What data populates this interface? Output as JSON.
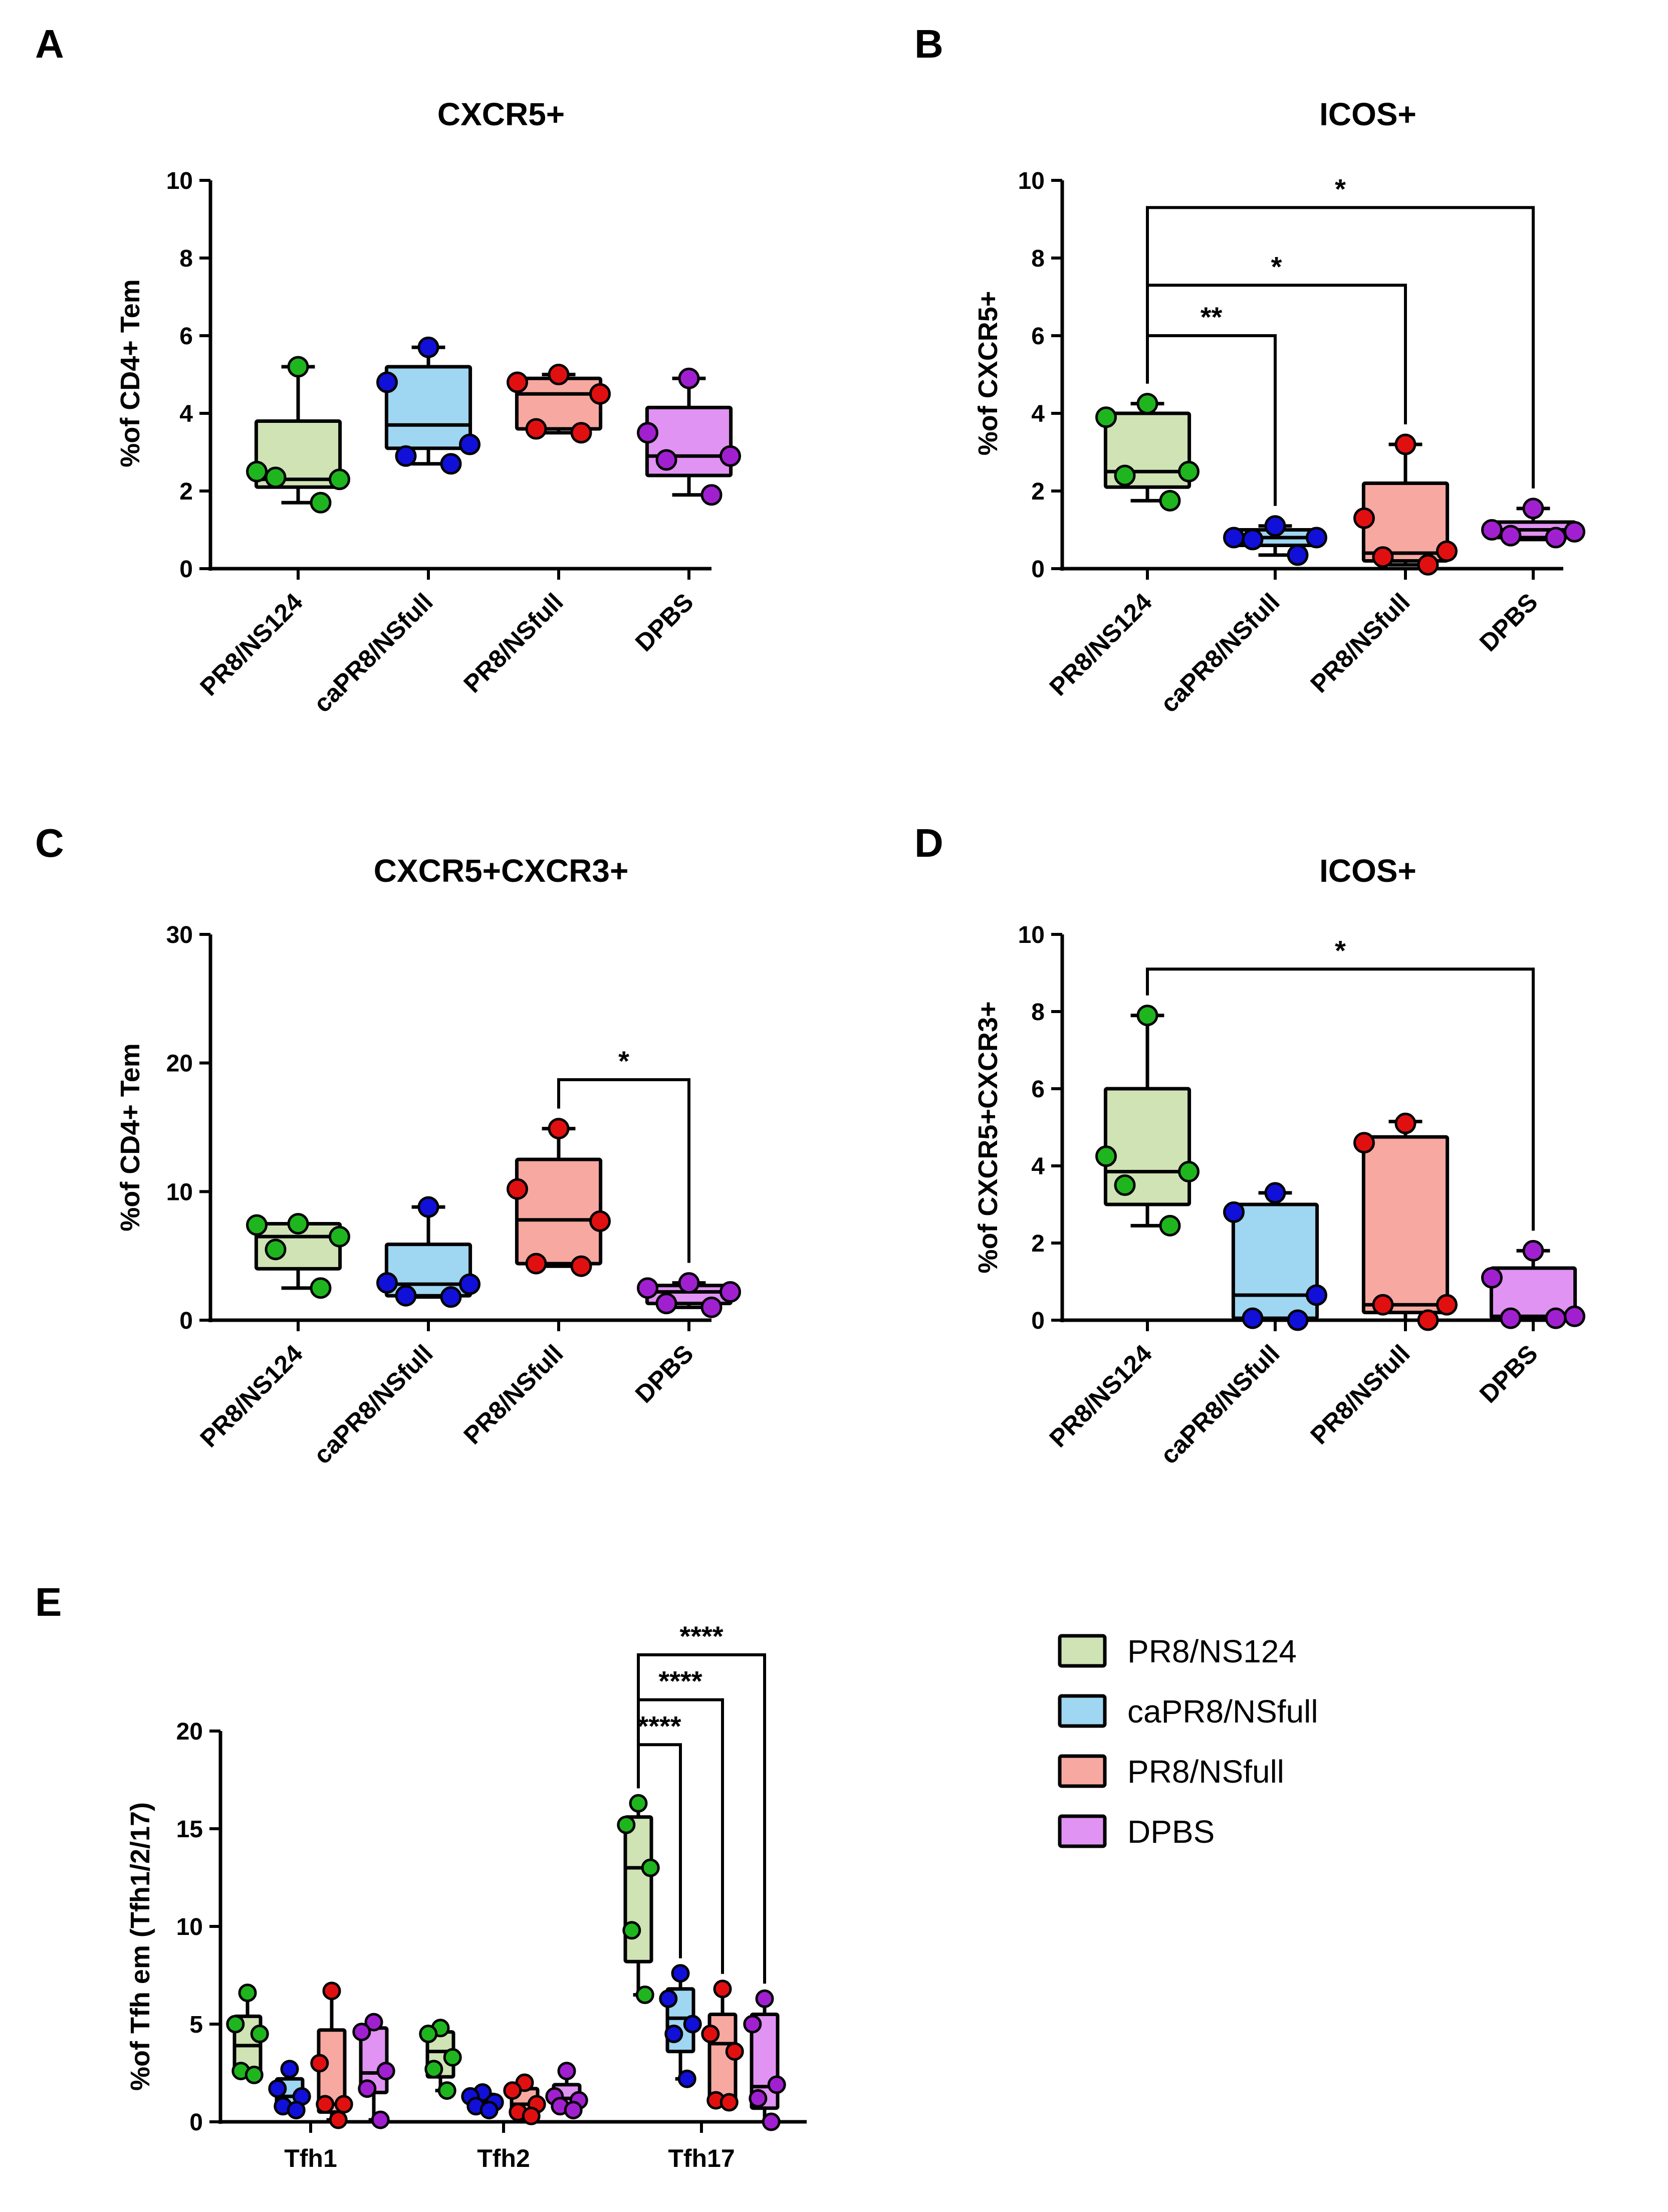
{
  "panels": [
    {
      "label": "A",
      "title": "CXCR5+",
      "ylabel": "%of CD4+ Tem",
      "ylim": [
        0,
        10
      ],
      "yticks": [
        0,
        2,
        4,
        6,
        8,
        10
      ]
    },
    {
      "label": "B",
      "title": "ICOS+",
      "ylabel": "%of CXCR5+",
      "ylim": [
        0,
        10
      ],
      "yticks": [
        0,
        2,
        4,
        6,
        8,
        10
      ]
    },
    {
      "label": "C",
      "title": "CXCR5+CXCR3+",
      "ylabel": "%of CD4+ Tem",
      "ylim": [
        0,
        30
      ],
      "yticks": [
        0,
        10,
        20,
        30
      ]
    },
    {
      "label": "D",
      "title": "ICOS+",
      "ylabel": "%of CXCR5+CXCR3+",
      "ylim": [
        0,
        10
      ],
      "yticks": [
        0,
        2,
        4,
        6,
        8,
        10
      ]
    },
    {
      "label": "E",
      "title": "",
      "ylabel": "%of Tfh em (Tfh1/2/17)",
      "ylim": [
        0,
        20
      ],
      "yticks": [
        0,
        5,
        10,
        15,
        20
      ]
    }
  ],
  "legend": {
    "items": [
      "PR8/NS124",
      "caPR8/NSfull",
      "PR8/NSfull",
      "DPBS"
    ]
  },
  "colors": {
    "fills": [
      "#cfe3b5",
      "#9fd6f1",
      "#f7a8a0",
      "#e093f2"
    ],
    "dots": [
      "#1fb51f",
      "#1010d8",
      "#e11010",
      "#a020d0"
    ]
  },
  "chart_data": [
    {
      "type": "box",
      "panel": "A",
      "title": "CXCR5+",
      "ylabel": "%of CD4+ Tem",
      "ylim": [
        0,
        10
      ],
      "categories": [
        "PR8/NS124",
        "caPR8/NSfull",
        "PR8/NSfull",
        "DPBS"
      ],
      "boxes": [
        {
          "min": 1.7,
          "q1": 2.1,
          "median": 2.3,
          "q3": 3.8,
          "max": 5.2
        },
        {
          "min": 2.7,
          "q1": 3.1,
          "median": 3.7,
          "q3": 5.2,
          "max": 5.7
        },
        {
          "min": 3.5,
          "q1": 3.6,
          "median": 4.5,
          "q3": 4.9,
          "max": 5.0
        },
        {
          "min": 1.9,
          "q1": 2.4,
          "median": 2.9,
          "q3": 4.15,
          "max": 4.9
        }
      ],
      "points": [
        [
          5.2,
          2.5,
          2.3,
          2.35,
          1.7
        ],
        [
          5.7,
          4.8,
          3.2,
          2.9,
          2.7
        ],
        [
          5.0,
          4.8,
          4.5,
          3.6,
          3.5
        ],
        [
          4.9,
          3.5,
          2.9,
          2.8,
          1.9
        ]
      ],
      "significance": []
    },
    {
      "type": "box",
      "panel": "B",
      "title": "ICOS+",
      "ylabel": "%of CXCR5+",
      "ylim": [
        0,
        10
      ],
      "categories": [
        "PR8/NS124",
        "caPR8/NSfull",
        "PR8/NSfull",
        "DPBS"
      ],
      "boxes": [
        {
          "min": 1.75,
          "q1": 2.1,
          "median": 2.5,
          "q3": 4.0,
          "max": 4.25
        },
        {
          "min": 0.35,
          "q1": 0.6,
          "median": 0.8,
          "q3": 1.0,
          "max": 1.1
        },
        {
          "min": 0.1,
          "q1": 0.2,
          "median": 0.4,
          "q3": 2.2,
          "max": 3.2
        },
        {
          "min": 0.75,
          "q1": 0.8,
          "median": 1.0,
          "q3": 1.2,
          "max": 1.55
        }
      ],
      "points": [
        [
          4.25,
          3.9,
          2.5,
          2.4,
          1.75
        ],
        [
          1.1,
          0.8,
          0.8,
          0.75,
          0.35
        ],
        [
          3.2,
          1.3,
          0.45,
          0.3,
          0.1
        ],
        [
          1.55,
          1.0,
          0.95,
          0.85,
          0.8
        ]
      ],
      "significance": [
        {
          "from": 0,
          "to": 1,
          "label": "**",
          "y": 6.0
        },
        {
          "from": 0,
          "to": 2,
          "label": "*",
          "y": 7.3
        },
        {
          "from": 0,
          "to": 3,
          "label": "*",
          "y": 9.3
        }
      ]
    },
    {
      "type": "box",
      "panel": "C",
      "title": "CXCR5+CXCR3+",
      "ylabel": "%of CD4+ Tem",
      "ylim": [
        0,
        30
      ],
      "categories": [
        "PR8/NS124",
        "caPR8/NSfull",
        "PR8/NSfull",
        "DPBS"
      ],
      "boxes": [
        {
          "min": 2.5,
          "q1": 4.0,
          "median": 6.5,
          "q3": 7.5,
          "max": 7.5
        },
        {
          "min": 1.8,
          "q1": 1.9,
          "median": 2.8,
          "q3": 5.9,
          "max": 8.8
        },
        {
          "min": 4.2,
          "q1": 4.4,
          "median": 7.8,
          "q3": 12.5,
          "max": 14.9
        },
        {
          "min": 1.0,
          "q1": 1.3,
          "median": 2.2,
          "q3": 2.7,
          "max": 2.9
        }
      ],
      "points": [
        [
          7.5,
          7.4,
          6.5,
          5.5,
          2.5
        ],
        [
          8.8,
          2.9,
          2.8,
          1.9,
          1.8
        ],
        [
          14.9,
          10.2,
          7.7,
          4.4,
          4.2
        ],
        [
          2.9,
          2.5,
          2.2,
          1.3,
          1.0
        ]
      ],
      "significance": [
        {
          "from": 2,
          "to": 3,
          "label": "*",
          "y": 18.7
        }
      ]
    },
    {
      "type": "box",
      "panel": "D",
      "title": "ICOS+",
      "ylabel": "%of CXCR5+CXCR3+",
      "ylim": [
        0,
        10
      ],
      "categories": [
        "PR8/NS124",
        "caPR8/NSfull",
        "PR8/NSfull",
        "DPBS"
      ],
      "boxes": [
        {
          "min": 2.45,
          "q1": 3.0,
          "median": 3.85,
          "q3": 6.0,
          "max": 7.9
        },
        {
          "min": 0.0,
          "q1": 0.05,
          "median": 0.65,
          "q3": 3.0,
          "max": 3.3
        },
        {
          "min": 0.0,
          "q1": 0.2,
          "median": 0.4,
          "q3": 4.75,
          "max": 5.15
        },
        {
          "min": 0.05,
          "q1": 0.05,
          "median": 0.1,
          "q3": 1.35,
          "max": 1.8
        }
      ],
      "points": [
        [
          7.9,
          4.25,
          3.85,
          3.5,
          2.45
        ],
        [
          3.3,
          2.8,
          0.65,
          0.05,
          0.0
        ],
        [
          5.1,
          4.6,
          0.4,
          0.4,
          0.0
        ],
        [
          1.8,
          1.1,
          0.1,
          0.05,
          0.05
        ]
      ],
      "significance": [
        {
          "from": 0,
          "to": 3,
          "label": "*",
          "y": 9.1
        }
      ]
    },
    {
      "type": "grouped-box",
      "panel": "E",
      "ylabel": "%of Tfh em (Tfh1/2/17)",
      "ylim": [
        0,
        20
      ],
      "categories": [
        "Tfh1",
        "Tfh2",
        "Tfh17"
      ],
      "series": [
        {
          "name": "PR8/NS124",
          "boxes": [
            {
              "min": 2.4,
              "q1": 2.6,
              "median": 3.9,
              "q3": 5.4,
              "max": 6.6
            },
            {
              "min": 1.6,
              "q1": 2.3,
              "median": 3.6,
              "q3": 4.6,
              "max": 4.8
            },
            {
              "min": 6.5,
              "q1": 8.2,
              "median": 13.0,
              "q3": 15.6,
              "max": 16.3
            }
          ],
          "points": [
            [
              6.6,
              5.0,
              4.5,
              2.6,
              2.4
            ],
            [
              4.8,
              4.5,
              3.3,
              2.7,
              1.6
            ],
            [
              16.3,
              15.2,
              13.0,
              9.8,
              6.5
            ]
          ]
        },
        {
          "name": "caPR8/NSfull",
          "boxes": [
            {
              "min": 0.6,
              "q1": 0.7,
              "median": 1.3,
              "q3": 2.2,
              "max": 2.7
            },
            {
              "min": 0.6,
              "q1": 0.7,
              "median": 1.0,
              "q3": 1.4,
              "max": 1.5
            },
            {
              "min": 2.2,
              "q1": 3.6,
              "median": 5.3,
              "q3": 6.8,
              "max": 7.6
            }
          ],
          "points": [
            [
              2.7,
              1.7,
              1.3,
              0.8,
              0.6
            ],
            [
              1.5,
              1.3,
              1.0,
              0.8,
              0.6
            ],
            [
              7.6,
              6.3,
              5.0,
              4.5,
              2.2
            ]
          ]
        },
        {
          "name": "PR8/NSfull",
          "boxes": [
            {
              "min": 0.1,
              "q1": 0.5,
              "median": 0.9,
              "q3": 4.7,
              "max": 6.7
            },
            {
              "min": 0.3,
              "q1": 0.4,
              "median": 0.9,
              "q3": 1.7,
              "max": 2.0
            },
            {
              "min": 1.0,
              "q1": 1.1,
              "median": 4.0,
              "q3": 5.5,
              "max": 6.8
            }
          ],
          "points": [
            [
              6.7,
              3.0,
              0.9,
              0.9,
              0.1
            ],
            [
              2.0,
              1.6,
              0.9,
              0.5,
              0.3
            ],
            [
              6.8,
              4.5,
              3.6,
              1.1,
              1.0
            ]
          ]
        },
        {
          "name": "DPBS",
          "boxes": [
            {
              "min": 0.1,
              "q1": 1.5,
              "median": 2.5,
              "q3": 4.8,
              "max": 5.1
            },
            {
              "min": 0.6,
              "q1": 0.8,
              "median": 1.2,
              "q3": 1.9,
              "max": 2.6
            },
            {
              "min": 0.0,
              "q1": 0.7,
              "median": 1.8,
              "q3": 5.5,
              "max": 6.3
            }
          ],
          "points": [
            [
              5.1,
              4.6,
              2.6,
              1.7,
              0.1
            ],
            [
              2.6,
              1.3,
              1.1,
              0.8,
              0.6
            ],
            [
              6.3,
              5.0,
              1.9,
              1.2,
              0.0
            ]
          ]
        }
      ],
      "significance": [
        {
          "group": 2,
          "from": 0,
          "to": 1,
          "label": "****",
          "y": 19.3
        },
        {
          "group": 2,
          "from": 0,
          "to": 2,
          "label": "****",
          "y": 21.6
        },
        {
          "group": 2,
          "from": 0,
          "to": 3,
          "label": "****",
          "y": 23.9
        }
      ]
    }
  ]
}
